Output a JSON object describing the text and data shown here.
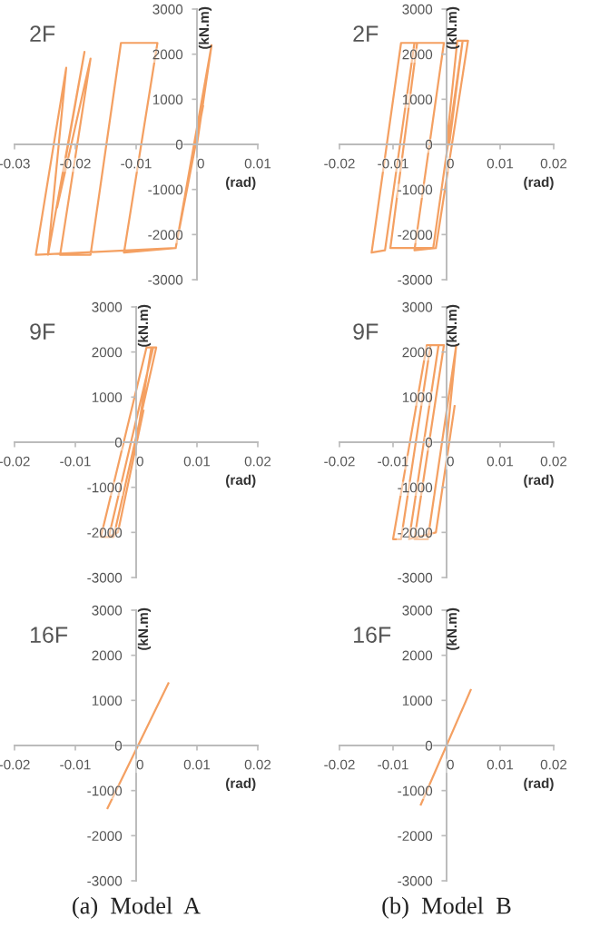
{
  "chart_data": [
    {
      "type": "line",
      "title": "2F",
      "xlabel": "(rad)",
      "ylabel": "(kN.m)",
      "xlim": [
        -0.03,
        0.01
      ],
      "xticks": [
        -0.03,
        -0.02,
        -0.01,
        0,
        0.01
      ],
      "ylim": [
        -3000,
        3000
      ],
      "yticks": [
        -3000,
        -2000,
        -1000,
        0,
        1000,
        2000,
        3000
      ],
      "grid": false,
      "series": [
        {
          "color": "#f4a062",
          "x": [
            0,
            0.0024,
            -0.0035,
            -0.0265,
            -0.0215,
            -0.0245,
            -0.0185,
            -0.023,
            -0.0175,
            -0.0225,
            -0.0175,
            -0.0125,
            -0.0065,
            -0.012,
            -0.0035,
            0.001
          ],
          "values": [
            0,
            2200,
            -2300,
            -2450,
            1700,
            -2450,
            2050,
            -1400,
            1900,
            -2450,
            -2450,
            2250,
            2250,
            -2400,
            -2300,
            850
          ]
        }
      ]
    },
    {
      "type": "line",
      "title": "2F",
      "xlabel": "(rad)",
      "ylabel": "(kN.m)",
      "xlim": [
        -0.02,
        0.02
      ],
      "xticks": [
        -0.02,
        -0.01,
        0,
        0.01,
        0.02
      ],
      "ylim": [
        -3000,
        3000
      ],
      "yticks": [
        -3000,
        -2000,
        -1000,
        0,
        1000,
        2000,
        3000
      ],
      "grid": false,
      "series": [
        {
          "color": "#f4a062",
          "x": [
            0,
            0.002,
            0.004,
            -0.002,
            -0.006,
            -0.0005,
            -0.006,
            -0.0115,
            -0.014,
            -0.0085,
            -0.0055,
            -0.0105,
            -0.0025,
            0.003,
            0.0005
          ],
          "values": [
            0,
            2300,
            2300,
            -2300,
            -2350,
            2250,
            2250,
            -2350,
            -2400,
            2250,
            2250,
            -2300,
            -2300,
            2300,
            0
          ]
        }
      ]
    },
    {
      "type": "line",
      "title": "9F",
      "xlabel": "(rad)",
      "ylabel": "(kN.m)",
      "xlim": [
        -0.02,
        0.02
      ],
      "xticks": [
        -0.02,
        -0.01,
        0,
        0.01,
        0.02
      ],
      "ylim": [
        -3000,
        3000
      ],
      "yticks": [
        -3000,
        -2000,
        -1000,
        0,
        1000,
        2000,
        3000
      ],
      "grid": false,
      "series": [
        {
          "color": "#f4a062",
          "x": [
            0,
            0.0025,
            0.0033,
            -0.0037,
            -0.0058,
            0.0017,
            0.0028,
            -0.0045,
            -0.003,
            0.0012
          ],
          "values": [
            0,
            2100,
            2100,
            -2100,
            -2100,
            2100,
            2100,
            -2100,
            -2000,
            700
          ]
        }
      ]
    },
    {
      "type": "line",
      "title": "9F",
      "xlabel": "(rad)",
      "ylabel": "(kN.m)",
      "xlim": [
        -0.02,
        0.02
      ],
      "xticks": [
        -0.02,
        -0.01,
        0,
        0.01,
        0.02
      ],
      "ylim": [
        -3000,
        3000
      ],
      "yticks": [
        -3000,
        -2000,
        -1000,
        0,
        1000,
        2000,
        3000
      ],
      "grid": false,
      "series": [
        {
          "color": "#f4a062",
          "x": [
            0,
            0.0018,
            -0.0035,
            -0.006,
            -0.0005,
            -0.003,
            -0.0085,
            -0.01,
            -0.0037,
            -0.0015,
            -0.007,
            -0.002,
            0.0015
          ],
          "values": [
            0,
            2150,
            -2150,
            -2150,
            2150,
            2150,
            -2150,
            -2150,
            2150,
            2150,
            -2150,
            -2000,
            800
          ]
        }
      ]
    },
    {
      "type": "line",
      "title": "16F",
      "xlabel": "(rad)",
      "ylabel": "(kN.m)",
      "xlim": [
        -0.02,
        0.02
      ],
      "xticks": [
        -0.02,
        -0.01,
        0,
        0.01,
        0.02
      ],
      "ylim": [
        -3000,
        3000
      ],
      "yticks": [
        -3000,
        -2000,
        -1000,
        0,
        1000,
        2000,
        3000
      ],
      "grid": false,
      "annotations": [
        "(a)  Model  A"
      ],
      "series": [
        {
          "color": "#f4a062",
          "x": [
            -0.0047,
            0.0053
          ],
          "values": [
            -1390,
            1380
          ]
        }
      ]
    },
    {
      "type": "line",
      "title": "16F",
      "xlabel": "(rad)",
      "ylabel": "(kN.m)",
      "xlim": [
        -0.02,
        0.02
      ],
      "xticks": [
        -0.02,
        -0.01,
        0,
        0.01,
        0.02
      ],
      "ylim": [
        -3000,
        3000
      ],
      "yticks": [
        -3000,
        -2000,
        -1000,
        0,
        1000,
        2000,
        3000
      ],
      "grid": false,
      "annotations": [
        "(b)  Model  B"
      ],
      "series": [
        {
          "color": "#f4a062",
          "x": [
            -0.0048,
            0.0045
          ],
          "values": [
            -1310,
            1230
          ]
        }
      ]
    }
  ]
}
